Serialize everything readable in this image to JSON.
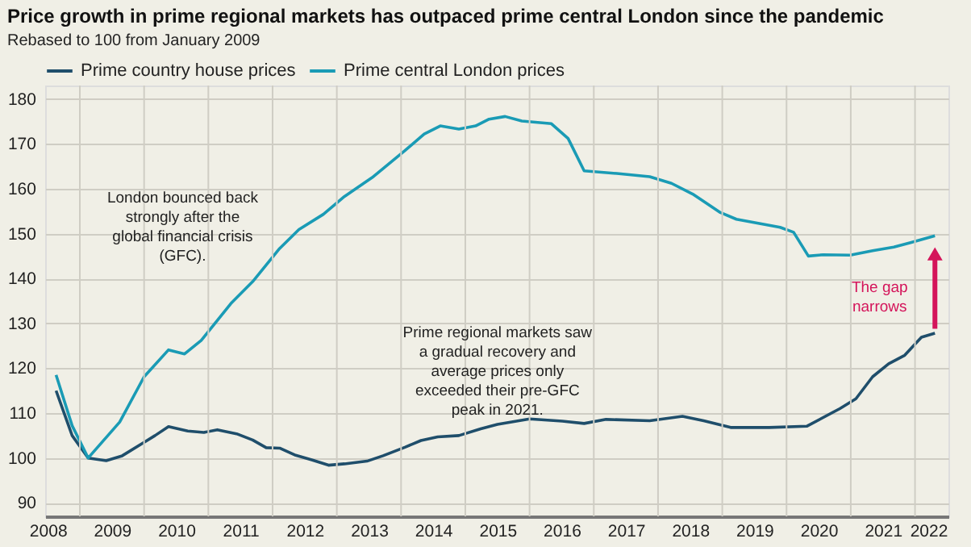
{
  "chart_data": {
    "type": "line",
    "title": "Price growth in prime regional markets has outpaced prime central London since the pandemic",
    "subtitle": "Rebased to 100 from January 2009",
    "series": [
      {
        "name": "Prime country house prices",
        "color": "#1f4e6b",
        "x": [
          2008.13,
          2008.38,
          2008.63,
          2008.91,
          2009.16,
          2009.5,
          2009.67,
          2009.88,
          2010.18,
          2010.43,
          2010.64,
          2010.94,
          2011.19,
          2011.4,
          2011.61,
          2011.86,
          2012.11,
          2012.37,
          2012.62,
          2012.97,
          2013.22,
          2013.56,
          2013.81,
          2014.07,
          2014.4,
          2014.74,
          2015.0,
          2015.5,
          2016.01,
          2016.35,
          2016.69,
          2017.37,
          2017.88,
          2018.21,
          2018.63,
          2019.23,
          2019.82,
          2020.33,
          2020.58,
          2020.84,
          2021.09,
          2021.34,
          2021.6,
          2021.81
        ],
        "values": [
          115,
          105,
          100,
          99.4,
          100.5,
          103.5,
          105,
          107,
          106,
          105.7,
          106.3,
          105.4,
          104,
          102.3,
          102.2,
          100.6,
          99.6,
          98.4,
          98.7,
          99.3,
          100.5,
          102.4,
          103.9,
          104.7,
          105,
          106.5,
          107.5,
          108.7,
          108.2,
          107.7,
          108.6,
          108.3,
          109.3,
          108.3,
          106.8,
          106.8,
          107.1,
          111,
          113.2,
          118.1,
          121,
          122.9,
          126.9,
          127.8
        ]
      },
      {
        "name": "Prime central London prices",
        "color": "#1a9bb5",
        "x": [
          2008.13,
          2008.38,
          2008.63,
          2009.12,
          2009.5,
          2009.88,
          2010.13,
          2010.39,
          2010.85,
          2011.19,
          2011.61,
          2011.91,
          2012.29,
          2012.62,
          2013.05,
          2013.56,
          2013.86,
          2014.11,
          2014.4,
          2014.66,
          2014.87,
          2015.12,
          2015.38,
          2015.84,
          2016.1,
          2016.35,
          2016.86,
          2017.37,
          2017.71,
          2018.04,
          2018.47,
          2018.72,
          2019.06,
          2019.4,
          2019.61,
          2019.84,
          2020.07,
          2020.49,
          2020.84,
          2021.17,
          2021.43,
          2021.81
        ],
        "values": [
          118.5,
          107.2,
          100,
          108,
          118.1,
          124.1,
          123.2,
          126.2,
          134.4,
          139.3,
          146.7,
          150.9,
          154.3,
          158.3,
          162.5,
          168.5,
          172.2,
          174,
          173.3,
          174,
          175.5,
          176.1,
          175.1,
          174.5,
          171.2,
          164,
          163.4,
          162.7,
          161.2,
          158.8,
          154.7,
          153.2,
          152.3,
          151.4,
          150.3,
          145,
          145.3,
          145.2,
          146.2,
          147,
          148,
          149.5
        ]
      }
    ],
    "xlim": [
      2007.96,
      2022.02
    ],
    "xticks": [
      2008,
      {
        "value": 2008.5,
        "label": null
      },
      2009,
      {
        "value": 2009.5,
        "label": null
      },
      2010,
      {
        "value": 2010.5,
        "label": null
      },
      2011,
      {
        "value": 2011.5,
        "label": null
      },
      2012,
      {
        "value": 2012.5,
        "label": null
      },
      2013,
      {
        "value": 2013.5,
        "label": null
      },
      2014,
      {
        "value": 2014.5,
        "label": null
      },
      2015,
      {
        "value": 2015.5,
        "label": null
      },
      2016,
      {
        "value": 2016.5,
        "label": null
      },
      2017,
      {
        "value": 2017.5,
        "label": null
      },
      2018,
      {
        "value": 2018.5,
        "label": null
      },
      2019,
      {
        "value": 2019.5,
        "label": null
      },
      2020,
      {
        "value": 2020.5,
        "label": null
      },
      2021,
      {
        "value": 2021.5,
        "label": null
      },
      2022
    ],
    "ylim": [
      87,
      183
    ],
    "yticks": [
      90,
      100,
      110,
      120,
      130,
      140,
      150,
      160,
      170,
      180
    ],
    "grid": true,
    "legend": "top left",
    "annotations": [
      "London bounced back\nstrongly after the\nglobal financial crisis\n(GFC).",
      "Prime regional markets saw\na gradual recovery and\naverage prices only\nexceeded their pre-GFC\npeak in 2021.",
      "The gap\nnarrows"
    ]
  }
}
